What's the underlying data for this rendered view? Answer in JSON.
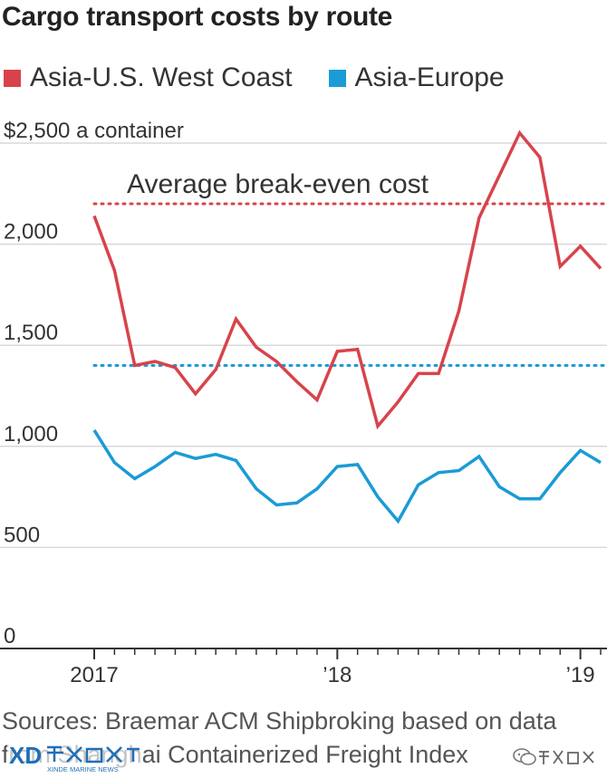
{
  "chart_data": {
    "type": "line",
    "title": "Cargo transport costs by route",
    "unit_label": "$2,500 a container",
    "x_tick_labels": [
      "2017",
      "’18",
      "’19"
    ],
    "y_tick_labels": [
      "2,000",
      "1,500",
      "1,000",
      "500",
      "0"
    ],
    "ylim": [
      0,
      2500
    ],
    "grid": "horizontal",
    "legend_position": "top-left",
    "x": [
      "2017-01",
      "2017-02",
      "2017-03",
      "2017-04",
      "2017-05",
      "2017-06",
      "2017-07",
      "2017-08",
      "2017-09",
      "2017-10",
      "2017-11",
      "2017-12",
      "2018-01",
      "2018-02",
      "2018-03",
      "2018-04",
      "2018-05",
      "2018-06",
      "2018-07",
      "2018-08",
      "2018-09",
      "2018-10",
      "2018-11",
      "2018-12",
      "2019-01",
      "2019-02"
    ],
    "series": [
      {
        "name": "Asia-U.S. West Coast",
        "color": "#d8434b",
        "values": [
          2140,
          1870,
          1400,
          1420,
          1390,
          1260,
          1380,
          1630,
          1490,
          1420,
          1320,
          1230,
          1470,
          1480,
          1100,
          1220,
          1360,
          1360,
          1670,
          2130,
          2340,
          2550,
          2430,
          1890,
          1990,
          1880
        ]
      },
      {
        "name": "Asia-Europe",
        "color": "#1a9bd6",
        "values": [
          1080,
          920,
          840,
          900,
          970,
          940,
          960,
          930,
          790,
          710,
          720,
          790,
          900,
          910,
          750,
          630,
          810,
          870,
          880,
          950,
          800,
          740,
          740,
          870,
          980,
          920
        ]
      }
    ],
    "annotations": [
      {
        "label": "Average break-even cost",
        "series": "Asia-U.S. West Coast",
        "value": 2200,
        "style": "dotted",
        "color": "#d8434b"
      },
      {
        "label": "",
        "series": "Asia-Europe",
        "value": 1400,
        "style": "dotted",
        "color": "#1a9bd6"
      }
    ]
  },
  "source_text": "Sources: Braemar ACM Shipbroking based on data from Shanghai Containerized Freight Index",
  "watermark": {
    "brand_text": "XINDE MARINE NEWS",
    "icon": "wechat-icon",
    "colors": {
      "logo": "#1f6fb8"
    }
  },
  "colors": {
    "grid": "#d9d9d9",
    "axis": "#333333",
    "text": "#333333"
  }
}
